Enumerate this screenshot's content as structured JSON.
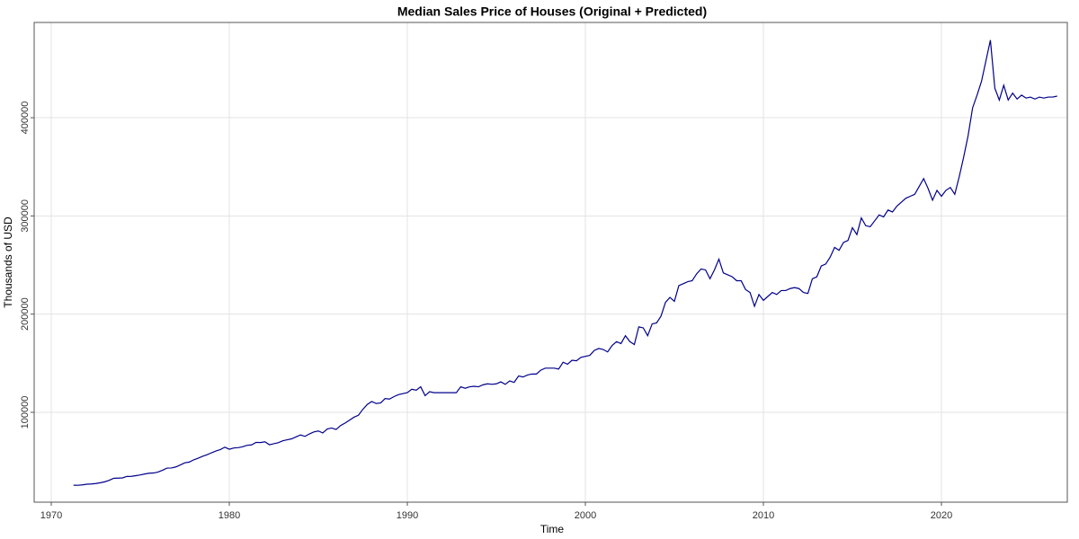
{
  "chart_data": {
    "type": "line",
    "title": "Median Sales Price of Houses (Original + Predicted)",
    "x_label": "Time",
    "y_label": "Thousands of USD",
    "color": "#00008b",
    "grid": true,
    "xlim": [
      1969.04,
      2027.07
    ],
    "xticks": [
      1970,
      1980,
      1990,
      2000,
      2010,
      2020
    ],
    "ylim": [
      8500,
      497000
    ],
    "yticks": [
      100000,
      200000,
      300000,
      400000
    ],
    "x": [
      1971.25,
      1971.5,
      1971.75,
      1972,
      1972.25,
      1972.5,
      1972.75,
      1973,
      1973.25,
      1973.5,
      1973.75,
      1974,
      1974.25,
      1974.5,
      1974.75,
      1975,
      1975.25,
      1975.5,
      1975.75,
      1976,
      1976.25,
      1976.5,
      1976.75,
      1977,
      1977.25,
      1977.5,
      1977.75,
      1978,
      1978.25,
      1978.5,
      1978.75,
      1979,
      1979.25,
      1979.5,
      1979.75,
      1980,
      1980.25,
      1980.5,
      1980.75,
      1981,
      1981.25,
      1981.5,
      1981.75,
      1982,
      1982.25,
      1982.5,
      1982.75,
      1983,
      1983.25,
      1983.5,
      1983.75,
      1984,
      1984.25,
      1984.5,
      1984.75,
      1985,
      1985.25,
      1985.5,
      1985.75,
      1986,
      1986.25,
      1986.5,
      1986.75,
      1987,
      1987.25,
      1987.5,
      1987.75,
      1988,
      1988.25,
      1988.5,
      1988.75,
      1989,
      1989.25,
      1989.5,
      1989.75,
      1990,
      1990.25,
      1990.5,
      1990.75,
      1991,
      1991.25,
      1991.5,
      1991.75,
      1992,
      1992.25,
      1992.5,
      1992.75,
      1993,
      1993.25,
      1993.5,
      1993.75,
      1994,
      1994.25,
      1994.5,
      1994.75,
      1995,
      1995.25,
      1995.5,
      1995.75,
      1996,
      1996.25,
      1996.5,
      1996.75,
      1997,
      1997.25,
      1997.5,
      1997.75,
      1998,
      1998.25,
      1998.5,
      1998.75,
      1999,
      1999.25,
      1999.5,
      1999.75,
      2000,
      2000.25,
      2000.5,
      2000.75,
      2001,
      2001.25,
      2001.5,
      2001.75,
      2002,
      2002.25,
      2002.5,
      2002.75,
      2003,
      2003.25,
      2003.5,
      2003.75,
      2004,
      2004.25,
      2004.5,
      2004.75,
      2005,
      2005.25,
      2005.5,
      2005.75,
      2006,
      2006.25,
      2006.5,
      2006.75,
      2007,
      2007.25,
      2007.5,
      2007.75,
      2008,
      2008.25,
      2008.5,
      2008.75,
      2009,
      2009.25,
      2009.5,
      2009.75,
      2010,
      2010.25,
      2010.5,
      2010.75,
      2011,
      2011.25,
      2011.5,
      2011.75,
      2012,
      2012.25,
      2012.5,
      2012.75,
      2013,
      2013.25,
      2013.5,
      2013.75,
      2014,
      2014.25,
      2014.5,
      2014.75,
      2015,
      2015.25,
      2015.5,
      2015.75,
      2016,
      2016.25,
      2016.5,
      2016.75,
      2017,
      2017.25,
      2017.5,
      2017.75,
      2018,
      2018.25,
      2018.5,
      2018.75,
      2019,
      2019.25,
      2019.5,
      2019.75,
      2020,
      2020.25,
      2020.5,
      2020.75,
      2021,
      2021.25,
      2021.5,
      2021.75,
      2022,
      2022.25,
      2022.5,
      2022.75,
      2023,
      2023.25,
      2023.5,
      2023.75,
      2024,
      2024.25,
      2024.5,
      2024.75,
      2025,
      2025.25,
      2025.5,
      2025.75,
      2026,
      2026.25,
      2026.5
    ],
    "values": [
      25800,
      25700,
      26100,
      26800,
      27000,
      27500,
      28300,
      29200,
      30700,
      32800,
      33000,
      33200,
      34700,
      34800,
      35500,
      36200,
      37200,
      38000,
      38200,
      39200,
      41000,
      43200,
      43300,
      44400,
      46400,
      48600,
      49300,
      51600,
      53300,
      55200,
      56800,
      58800,
      60600,
      62100,
      64500,
      62400,
      63700,
      64000,
      64900,
      66400,
      66800,
      69400,
      69200,
      70000,
      67000,
      68000,
      69000,
      71000,
      72000,
      73000,
      75000,
      77000,
      75500,
      78000,
      80000,
      81000,
      79000,
      83000,
      84000,
      82500,
      86500,
      89000,
      92000,
      95000,
      97000,
      103000,
      108000,
      111000,
      109000,
      109500,
      114000,
      113500,
      116000,
      118000,
      119000,
      120000,
      123500,
      122500,
      126000,
      117000,
      121000,
      120000,
      120000,
      120000,
      120000,
      120000,
      120000,
      126000,
      124500,
      126000,
      126500,
      126000,
      128000,
      129000,
      128500,
      129000,
      131000,
      128500,
      132000,
      130500,
      137000,
      136000,
      138000,
      139000,
      139000,
      143000,
      145000,
      145000,
      145000,
      144000,
      151000,
      149000,
      153000,
      152500,
      156000,
      157000,
      158000,
      163000,
      165000,
      164000,
      161500,
      168000,
      172000,
      170000,
      178000,
      172000,
      169000,
      187000,
      186000,
      178000,
      190000,
      191000,
      198000,
      212000,
      217000,
      213000,
      229000,
      231000,
      233000,
      234000,
      241000,
      246000,
      245000,
      236000,
      245000,
      256000,
      242000,
      240000,
      238000,
      234000,
      234000,
      225000,
      222000,
      208000,
      220000,
      214000,
      218000,
      222000,
      220000,
      224000,
      224000,
      226000,
      227000,
      226000,
      222000,
      221000,
      236000,
      238000,
      249000,
      251000,
      258000,
      268000,
      265000,
      273000,
      275000,
      288000,
      281000,
      298000,
      290000,
      289000,
      295000,
      301000,
      299000,
      306000,
      304000,
      310000,
      314000,
      318000,
      320000,
      322000,
      330000,
      338000,
      328000,
      316000,
      326000,
      320000,
      326000,
      329000,
      322000,
      340000,
      360000,
      382000,
      410000,
      423000,
      437000,
      458000,
      479000,
      430000,
      418000,
      433000,
      418000,
      425000,
      419000,
      423000,
      420000,
      421000,
      419000,
      421000,
      420000,
      421000,
      421000,
      422000
    ]
  }
}
